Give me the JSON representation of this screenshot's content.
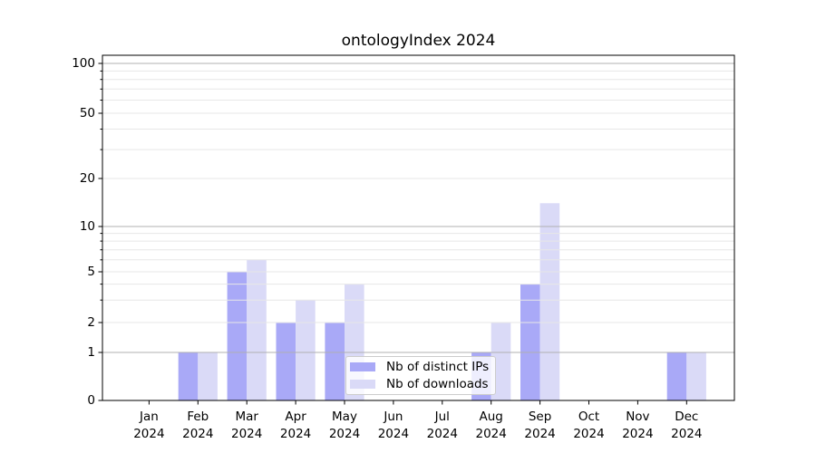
{
  "chart_data": {
    "type": "bar",
    "title": "ontologyIndex 2024",
    "categories": [
      "Jan",
      "Feb",
      "Mar",
      "Apr",
      "May",
      "Jun",
      "Jul",
      "Aug",
      "Sep",
      "Oct",
      "Nov",
      "Dec"
    ],
    "x_tick_second_line": "2024",
    "series": [
      {
        "name": "Nb of distinct IPs",
        "color": "#a9a9f7",
        "values": [
          0,
          1,
          5,
          2,
          2,
          0,
          0,
          1,
          4,
          0,
          0,
          1
        ]
      },
      {
        "name": "Nb of downloads",
        "color": "#dadaf7",
        "values": [
          0,
          1,
          6,
          3,
          4,
          0,
          0,
          2,
          14,
          0,
          0,
          1
        ]
      }
    ],
    "yaxis": {
      "scale": "symlog",
      "labeled_ticks": [
        0,
        1,
        2,
        5,
        10,
        20,
        50,
        100
      ],
      "major_gridlines": [
        1,
        10,
        100
      ],
      "minor_gridlines": [
        2,
        3,
        4,
        5,
        6,
        7,
        8,
        9,
        20,
        30,
        40,
        50,
        60,
        70,
        80,
        90
      ]
    },
    "legend": {
      "position": "lower center"
    },
    "grid": true,
    "colors": {
      "bar_dark": "#a9a9f7",
      "bar_light": "#dadaf7",
      "grid_major": "#b0b0b0",
      "grid_minor": "#e7e7e7",
      "axis": "#000000"
    }
  }
}
